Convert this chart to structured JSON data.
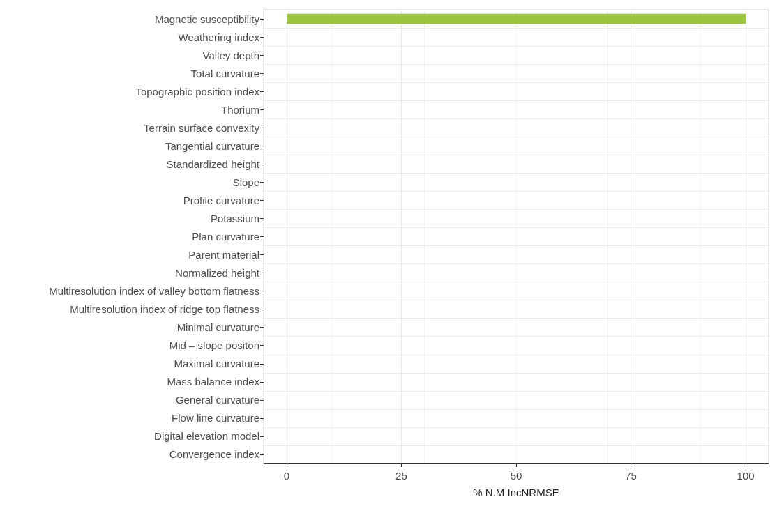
{
  "chart_data": {
    "type": "bar",
    "orientation": "horizontal",
    "xlabel": "% N.M IncNRMSE",
    "categories": [
      "Magnetic susceptibility",
      "Weathering index",
      "Valley depth",
      "Total curvature",
      "Topographic position index",
      "Thorium",
      "Terrain surface convexity",
      "Tangential curvature",
      "Standardized height",
      "Slope",
      "Profile curvature",
      "Potassium",
      "Plan curvature",
      "Parent material",
      "Normalized height",
      "Multiresolution index of valley bottom flatness",
      "Multiresolution index of ridge top flatness",
      "Minimal curvature",
      "Mid – slope positon",
      "Maximal curvature",
      "Mass balance index",
      "General curvature",
      "Flow line curvature",
      "Digital elevation model",
      "Convergence index"
    ],
    "values": [
      100,
      0,
      0,
      0,
      0,
      0,
      0,
      0,
      0,
      0,
      0,
      0,
      0,
      0,
      0,
      0,
      0,
      0,
      0,
      0,
      0,
      0,
      0,
      0,
      0
    ],
    "color": "#9bc43f",
    "xlim": [
      -5,
      105
    ],
    "xticks": [
      0,
      25,
      50,
      75,
      100
    ],
    "grid": true
  }
}
